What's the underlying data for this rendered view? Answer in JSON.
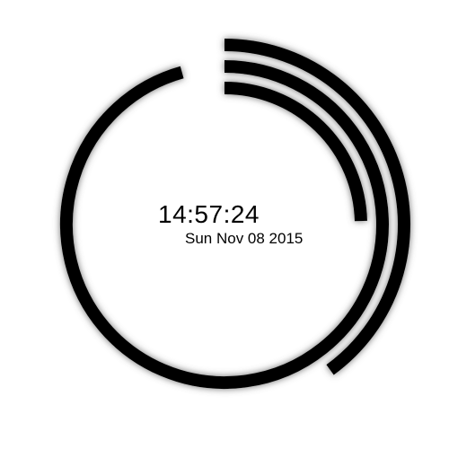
{
  "clock": {
    "time": "14:57:24",
    "date": "Sun Nov 08 2015",
    "hours": 14,
    "minutes": 57,
    "seconds": 24,
    "ring_color": "#000000",
    "shadow_color": "#555555",
    "background_color": "#ffffff"
  }
}
